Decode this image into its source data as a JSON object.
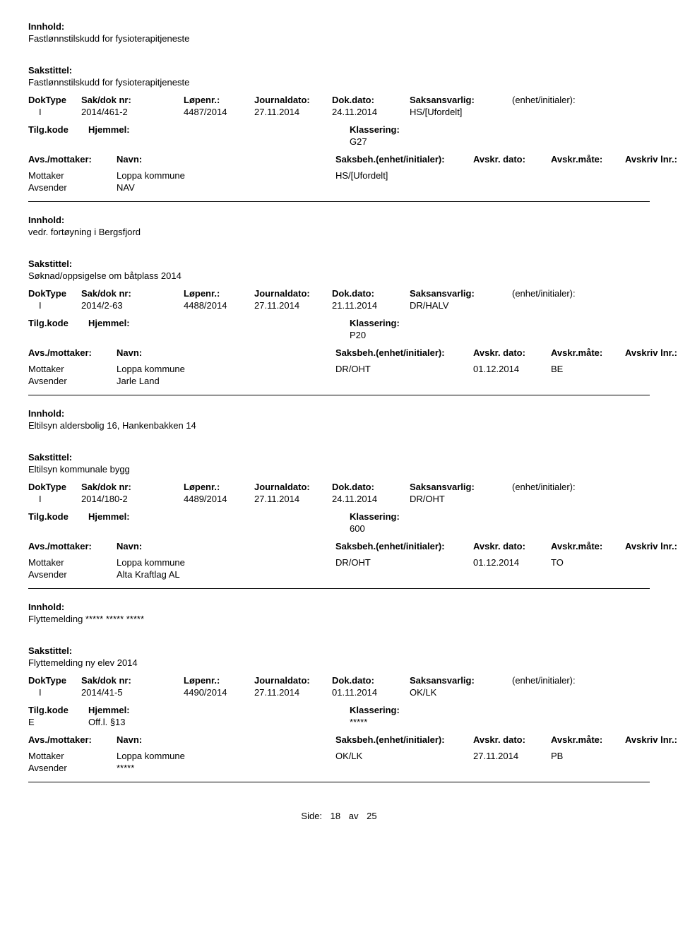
{
  "labels": {
    "innhold": "Innhold:",
    "sakstittel": "Sakstittel:",
    "doktype": "DokType",
    "sakdok": "Sak/dok nr:",
    "lopenr": "Løpenr.:",
    "journaldato": "Journaldato:",
    "dokdato": "Dok.dato:",
    "saksansvarlig": "Saksansvarlig:",
    "enhet": "(enhet/initialer):",
    "tilgkode": "Tilg.kode",
    "hjemmel": "Hjemmel:",
    "klassering": "Klassering:",
    "avsmottaker": "Avs./mottaker:",
    "navn": "Navn:",
    "saksbeh": "Saksbeh.(enhet/initialer):",
    "avskrdato": "Avskr. dato:",
    "avskrmate": "Avskr.måte:",
    "avskrlnr": "Avskriv lnr.:",
    "mottaker": "Mottaker",
    "avsender": "Avsender",
    "side": "Side:",
    "av": "av"
  },
  "page": {
    "current": "18",
    "total": "25"
  },
  "records": [
    {
      "innhold": "Fastlønnstilskudd for fysioterapitjeneste",
      "sakstittel": "Fastlønnstilskudd for fysioterapitjeneste",
      "doktype": "I",
      "sakdok": "2014/461-2",
      "lopenr": "4487/2014",
      "journaldato": "27.11.2014",
      "dokdato": "24.11.2014",
      "saksansvarlig": "HS/[Ufordelt]",
      "tilgkode": "",
      "hjemmel": "",
      "klassering": "G27",
      "parties": [
        {
          "role": "Mottaker",
          "name": "Loppa kommune",
          "sb": "HS/[Ufordelt]",
          "avd": "",
          "avm": ""
        },
        {
          "role": "Avsender",
          "name": "NAV",
          "sb": "",
          "avd": "",
          "avm": ""
        }
      ]
    },
    {
      "innhold": "vedr. fortøyning i Bergsfjord",
      "sakstittel": "Søknad/oppsigelse om båtplass 2014",
      "doktype": "I",
      "sakdok": "2014/2-63",
      "lopenr": "4488/2014",
      "journaldato": "27.11.2014",
      "dokdato": "21.11.2014",
      "saksansvarlig": "DR/HALV",
      "tilgkode": "",
      "hjemmel": "",
      "klassering": "P20",
      "parties": [
        {
          "role": "Mottaker",
          "name": "Loppa kommune",
          "sb": "DR/OHT",
          "avd": "01.12.2014",
          "avm": "BE"
        },
        {
          "role": "Avsender",
          "name": "Jarle Land",
          "sb": "",
          "avd": "",
          "avm": ""
        }
      ]
    },
    {
      "innhold": "Eltilsyn aldersbolig 16, Hankenbakken 14",
      "sakstittel": "Eltilsyn kommunale bygg",
      "doktype": "I",
      "sakdok": "2014/180-2",
      "lopenr": "4489/2014",
      "journaldato": "27.11.2014",
      "dokdato": "24.11.2014",
      "saksansvarlig": "DR/OHT",
      "tilgkode": "",
      "hjemmel": "",
      "klassering": "600",
      "parties": [
        {
          "role": "Mottaker",
          "name": "Loppa kommune",
          "sb": "DR/OHT",
          "avd": "01.12.2014",
          "avm": "TO"
        },
        {
          "role": "Avsender",
          "name": "Alta Kraftlag AL",
          "sb": "",
          "avd": "",
          "avm": ""
        }
      ]
    },
    {
      "innhold": "Flyttemelding ***** ***** *****",
      "sakstittel": "Flyttemelding ny elev 2014",
      "doktype": "I",
      "sakdok": "2014/41-5",
      "lopenr": "4490/2014",
      "journaldato": "27.11.2014",
      "dokdato": "01.11.2014",
      "saksansvarlig": "OK/LK",
      "tilgkode": "E",
      "hjemmel": "Off.l. §13",
      "klassering": "*****",
      "parties": [
        {
          "role": "Mottaker",
          "name": "Loppa kommune",
          "sb": "OK/LK",
          "avd": "27.11.2014",
          "avm": "PB"
        },
        {
          "role": "Avsender",
          "name": "*****",
          "sb": "",
          "avd": "",
          "avm": ""
        }
      ]
    }
  ]
}
